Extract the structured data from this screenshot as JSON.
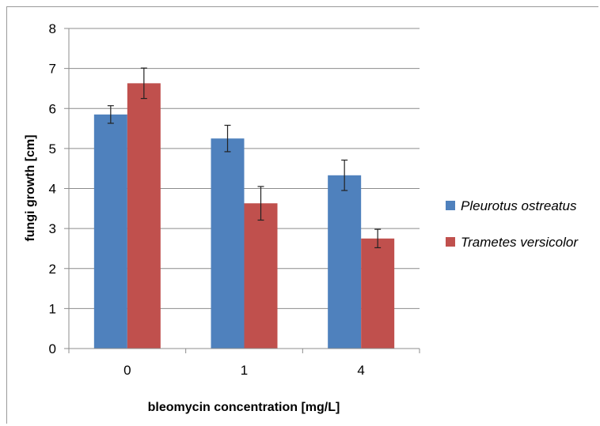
{
  "chart_data": {
    "type": "bar",
    "title": "",
    "xlabel": "bleomycin concentration [mg/L]",
    "ylabel": "fungi growth [cm]",
    "categories": [
      "0",
      "1",
      "4"
    ],
    "ylim": [
      0,
      8
    ],
    "yticks": [
      "0",
      "1",
      "2",
      "3",
      "4",
      "5",
      "6",
      "7",
      "8"
    ],
    "grid": true,
    "legend_position": "right",
    "series": [
      {
        "name": "Pleurotus ostreatus",
        "color": "#4f81bd",
        "values": [
          5.85,
          5.25,
          4.33
        ],
        "errors": [
          0.22,
          0.33,
          0.38
        ]
      },
      {
        "name": "Trametes versicolor",
        "color": "#c0504d",
        "values": [
          6.63,
          3.63,
          2.75
        ],
        "errors": [
          0.38,
          0.42,
          0.23
        ]
      }
    ]
  }
}
